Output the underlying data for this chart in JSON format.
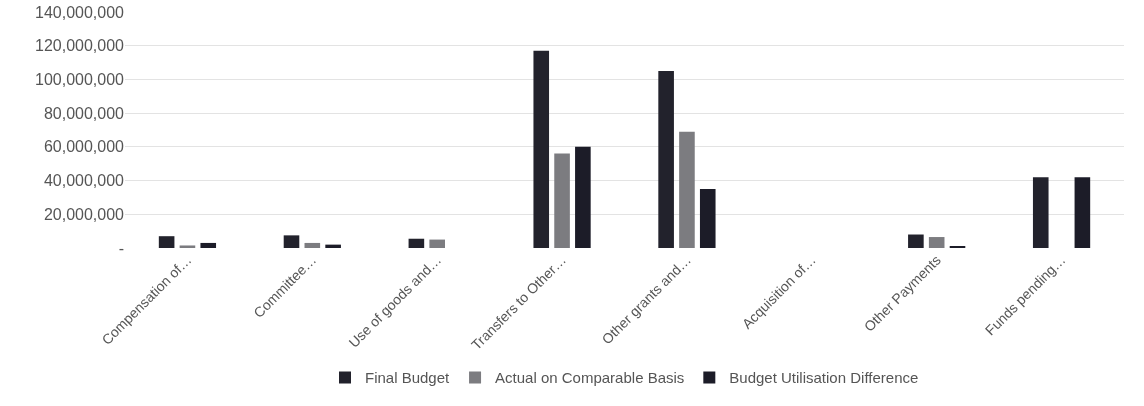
{
  "chart_data": {
    "type": "bar",
    "categories": [
      "Compensation of…",
      "Committee…",
      "Use of goods and…",
      "Transfers to Other…",
      "Other grants and…",
      "Acquisition of…",
      "Other Payments",
      "Funds pending…"
    ],
    "series": [
      {
        "name": "Final Budget",
        "color": "#22222c",
        "values": [
          7000000,
          7500000,
          5500000,
          117000000,
          105000000,
          0,
          8000000,
          42000000
        ]
      },
      {
        "name": "Actual on Comparable Basis",
        "color": "#7c7c80",
        "values": [
          1500000,
          3000000,
          5000000,
          56000000,
          69000000,
          0,
          6500000,
          0
        ]
      },
      {
        "name": "Budget Utilisation Difference",
        "color": "#1c1c28",
        "values": [
          3000000,
          2000000,
          0,
          60000000,
          35000000,
          0,
          1000000,
          42000000
        ]
      }
    ],
    "ylim": [
      0,
      140000000
    ],
    "yticks": [
      {
        "value": 0,
        "label": "-"
      },
      {
        "value": 20000000,
        "label": "20,000,000"
      },
      {
        "value": 40000000,
        "label": "40,000,000"
      },
      {
        "value": 60000000,
        "label": "60,000,000"
      },
      {
        "value": 80000000,
        "label": "80,000,000"
      },
      {
        "value": 100000000,
        "label": "100,000,000"
      },
      {
        "value": 120000000,
        "label": "120,000,000"
      },
      {
        "value": 140000000,
        "label": "140,000,000"
      }
    ],
    "grid": "y",
    "legend": "bottom"
  }
}
